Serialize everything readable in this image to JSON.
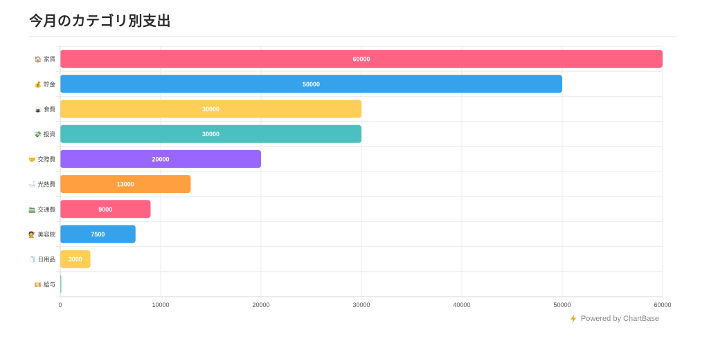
{
  "title": "今月のカテゴリ別支出",
  "footer": {
    "label": "Powered by ChartBase",
    "icon": "lightning-bolt-icon",
    "icon_color": "#F6A623"
  },
  "chart_data": {
    "type": "bar",
    "orientation": "horizontal",
    "categories": [
      "🏠 家賃",
      "💰 貯金",
      "🍙 食費",
      "💸 投資",
      "🤝 交際費",
      "🛁 光熱費",
      "🚞 交通費",
      "💇 美容院",
      "🧻 日用品",
      "💴 給与"
    ],
    "values": [
      60000,
      50000,
      30000,
      30000,
      20000,
      13000,
      9000,
      7500,
      3000,
      0
    ],
    "colors": [
      "#FF6384",
      "#36A2EB",
      "#FFCE56",
      "#4BC0C0",
      "#9966FF",
      "#FF9F40",
      "#FF6384",
      "#36A2EB",
      "#FFCE56",
      "#4BC0C0"
    ],
    "data_labels": [
      "60000",
      "50000",
      "30000",
      "30000",
      "20000",
      "13000",
      "9000",
      "7500",
      "3000",
      ""
    ],
    "xticks": [
      "0",
      "10000",
      "20000",
      "30000",
      "40000",
      "50000",
      "60000"
    ],
    "xlim": [
      0,
      60000
    ],
    "grid": true,
    "legend": "none"
  }
}
